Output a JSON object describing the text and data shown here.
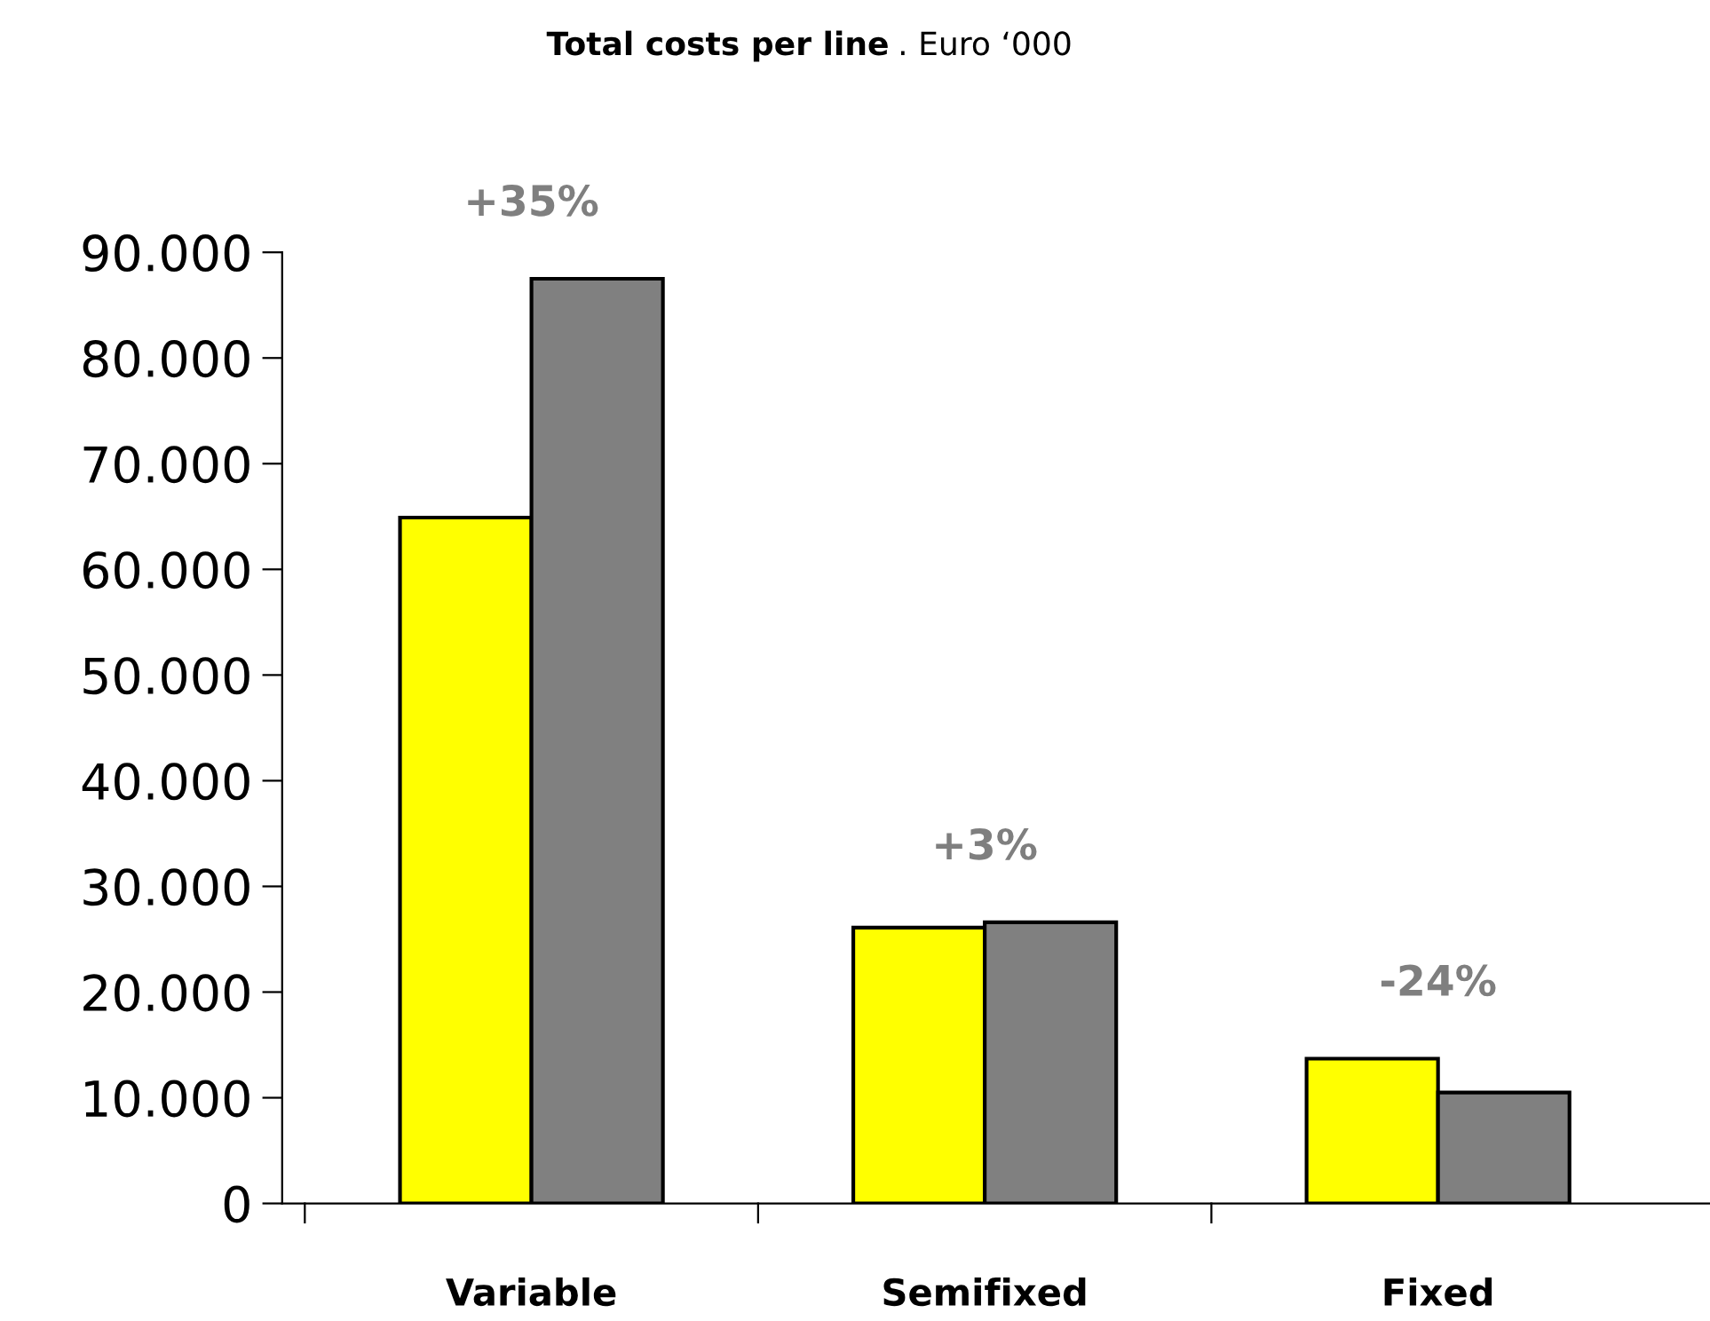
{
  "chart_data": {
    "type": "bar",
    "title": "Total costs per line",
    "subtitle": ". Euro ‘000",
    "categories": [
      "Variable",
      "Semifixed",
      "Fixed"
    ],
    "series": [
      {
        "color": "#ffff00",
        "values": [
          64900,
          26100,
          13700
        ]
      },
      {
        "color": "#808080",
        "values": [
          87500,
          26600,
          10500
        ]
      }
    ],
    "ylim": [
      0,
      90000
    ],
    "yticks": [
      0,
      {
        "value": 10000,
        "label": "10.000"
      },
      {
        "value": 20000,
        "label": "20.000"
      },
      {
        "value": 30000,
        "label": "30.000"
      },
      {
        "value": 40000,
        "label": "40.000"
      },
      {
        "value": 50000,
        "label": "50.000"
      },
      {
        "value": 60000,
        "label": "60.000"
      },
      {
        "value": 70000,
        "label": "70.000"
      },
      {
        "value": 80000,
        "label": "80.000"
      },
      {
        "value": 90000,
        "label": "90.000"
      }
    ],
    "annotations": [
      {
        "text": "+35%",
        "x": "Variable",
        "y": 87500
      },
      {
        "text": "+3%",
        "x": "Semifixed",
        "y": 26600
      },
      {
        "text": "-24%",
        "x": "Fixed",
        "y": 13700
      }
    ],
    "grid": false
  }
}
